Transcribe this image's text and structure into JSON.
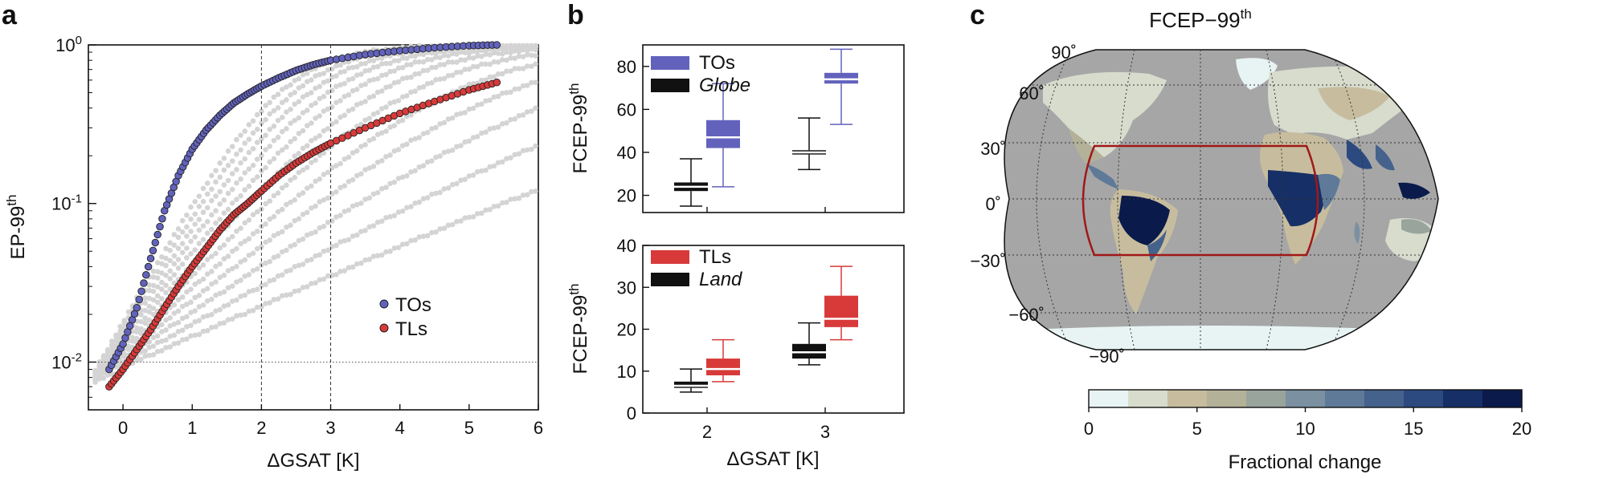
{
  "panel_a": {
    "letter": "a",
    "chart_data": {
      "type": "scatter",
      "xlabel": "ΔGSAT [K]",
      "ylabel_main": "EP-99",
      "ylabel_sup": "th",
      "xlim": [
        -0.5,
        6
      ],
      "ylim": [
        0.005,
        1
      ],
      "yscale": "log",
      "xticks": [
        "0",
        "1",
        "2",
        "3",
        "4",
        "5",
        "6"
      ],
      "ytick_labels": [
        {
          "base": "10",
          "exp": "0"
        },
        {
          "base": "10",
          "exp": "-1"
        },
        {
          "base": "10",
          "exp": "-2"
        }
      ],
      "vlines": [
        2,
        3
      ],
      "hline": 0.01,
      "series": [
        {
          "name": "TOs",
          "color": "#6262bd",
          "x": [
            -0.2,
            0,
            0.2,
            0.4,
            0.6,
            0.8,
            1.0,
            1.2,
            1.4,
            1.6,
            1.8,
            2.0,
            2.25,
            2.5,
            2.75,
            3.0,
            3.5,
            4.0,
            4.5,
            5.0,
            5.4
          ],
          "y": [
            0.009,
            0.013,
            0.022,
            0.045,
            0.09,
            0.15,
            0.22,
            0.29,
            0.36,
            0.43,
            0.49,
            0.55,
            0.62,
            0.69,
            0.75,
            0.8,
            0.87,
            0.92,
            0.96,
            0.99,
            1.0
          ]
        },
        {
          "name": "TLs",
          "color": "#d83a3a",
          "x": [
            -0.2,
            0,
            0.2,
            0.4,
            0.6,
            0.8,
            1.0,
            1.2,
            1.4,
            1.6,
            1.8,
            2.0,
            2.25,
            2.5,
            2.75,
            3.0,
            3.5,
            4.0,
            4.5,
            5.0,
            5.4
          ],
          "y": [
            0.007,
            0.009,
            0.012,
            0.016,
            0.022,
            0.03,
            0.04,
            0.052,
            0.068,
            0.085,
            0.1,
            0.12,
            0.15,
            0.18,
            0.21,
            0.24,
            0.3,
            0.37,
            0.44,
            0.52,
            0.58
          ]
        }
      ],
      "background_note_count": 12,
      "legend": [
        "TOs",
        "TLs"
      ]
    }
  },
  "panel_b": {
    "letter": "b",
    "xlabel": "ΔGSAT [K]",
    "ylabel_main": "FCEP-99",
    "ylabel_sup": "th",
    "xticks": [
      "2",
      "3"
    ],
    "top": {
      "chart_data": {
        "type": "box",
        "ylim": [
          12,
          90
        ],
        "yticks": [
          20,
          40,
          60,
          80
        ],
        "categories": [
          "2",
          "3"
        ],
        "legend": [
          {
            "label": "TOs",
            "color": "#6262bd",
            "italic": false
          },
          {
            "label": "Globe",
            "color": "#111111",
            "italic": true
          }
        ],
        "boxes": [
          {
            "cat": "2",
            "series": "Globe",
            "min": 15,
            "q1": 22,
            "median": 24,
            "q3": 26,
            "max": 37
          },
          {
            "cat": "2",
            "series": "TOs",
            "min": 24,
            "q1": 42,
            "median": 47,
            "q3": 55,
            "max": 72
          },
          {
            "cat": "3",
            "series": "Globe",
            "min": 32,
            "q1": 39,
            "median": 40,
            "q3": 41,
            "max": 56
          },
          {
            "cat": "3",
            "series": "TOs",
            "min": 53,
            "q1": 72,
            "median": 74,
            "q3": 77,
            "max": 88
          }
        ]
      }
    },
    "bottom": {
      "chart_data": {
        "type": "box",
        "ylim": [
          0,
          40
        ],
        "yticks": [
          0,
          10,
          20,
          30,
          40
        ],
        "categories": [
          "2",
          "3"
        ],
        "legend": [
          {
            "label": "TLs",
            "color": "#d83a3a",
            "italic": false
          },
          {
            "label": "Land",
            "color": "#111111",
            "italic": true
          }
        ],
        "boxes": [
          {
            "cat": "2",
            "series": "Land",
            "min": 5,
            "q1": 6,
            "median": 6.5,
            "q3": 7.5,
            "max": 10.5
          },
          {
            "cat": "2",
            "series": "TLs",
            "min": 7.5,
            "q1": 9,
            "median": 10.5,
            "q3": 13,
            "max": 17.5
          },
          {
            "cat": "3",
            "series": "Land",
            "min": 11.5,
            "q1": 13,
            "median": 14.5,
            "q3": 16.5,
            "max": 21.5
          },
          {
            "cat": "3",
            "series": "TLs",
            "min": 17.5,
            "q1": 20.5,
            "median": 22.5,
            "q3": 28,
            "max": 35
          }
        ]
      }
    }
  },
  "panel_c": {
    "letter": "c",
    "title_main": "FCEP−99",
    "title_sup": "th",
    "lat_labels": [
      "90˚",
      "60˚",
      "30˚",
      "0˚",
      "−30˚",
      "−60˚",
      "−90˚"
    ],
    "colorbar": {
      "label": "Fractional change",
      "ticks": [
        "0",
        "5",
        "10",
        "15",
        "20"
      ],
      "colors": [
        "#e8f4f4",
        "#d7dccd",
        "#c7bd9e",
        "#b3b198",
        "#98a49c",
        "#7b90a0",
        "#5f7a98",
        "#44628c",
        "#2c4a80",
        "#162f66",
        "#0a1a4a"
      ]
    }
  },
  "colors": {
    "tos": "#6262bd",
    "tls": "#d83a3a",
    "gray_points": "#cfcfcf",
    "ocean": "#a6a6a6",
    "box_outline": "#a01818"
  }
}
